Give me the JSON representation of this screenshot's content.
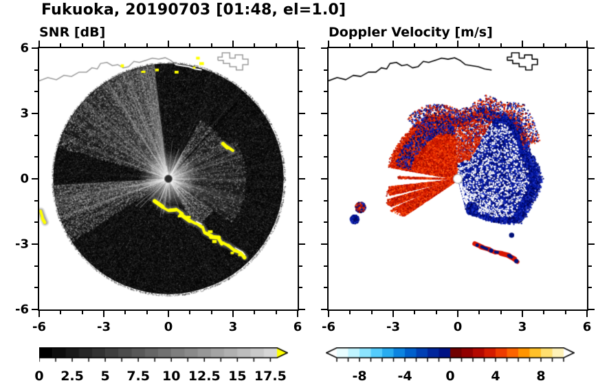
{
  "figure": {
    "title": "Fukuoka, 20190703 [01:48, el=1.0]"
  },
  "coastline": {
    "main": [
      [
        -6,
        4.55
      ],
      [
        -5.6,
        4.7
      ],
      [
        -5.2,
        4.6
      ],
      [
        -4.85,
        4.8
      ],
      [
        -4.5,
        4.75
      ],
      [
        -4.15,
        4.95
      ],
      [
        -3.8,
        4.95
      ],
      [
        -3.55,
        5.15
      ],
      [
        -3.3,
        5.1
      ],
      [
        -3.15,
        5.35
      ],
      [
        -2.85,
        5.4
      ],
      [
        -2.6,
        5.25
      ],
      [
        -2.35,
        5.3
      ],
      [
        -2.1,
        5.15
      ],
      [
        -1.85,
        5.2
      ],
      [
        -1.6,
        5.45
      ],
      [
        -1.35,
        5.4
      ],
      [
        -1.05,
        5.5
      ],
      [
        -0.75,
        5.6
      ],
      [
        -0.45,
        5.55
      ],
      [
        -0.15,
        5.62
      ],
      [
        0.1,
        5.5
      ],
      [
        0.35,
        5.3
      ],
      [
        0.65,
        5.25
      ],
      [
        0.95,
        5.2
      ],
      [
        1.25,
        5.1
      ],
      [
        1.55,
        5.05
      ]
    ],
    "port": [
      [
        2.3,
        5.5
      ],
      [
        2.55,
        5.5
      ],
      [
        2.55,
        5.35
      ],
      [
        2.85,
        5.35
      ],
      [
        2.85,
        5.2
      ],
      [
        3.15,
        5.2
      ],
      [
        3.15,
        5.05
      ],
      [
        3.45,
        5.05
      ],
      [
        3.45,
        5.3
      ],
      [
        3.7,
        5.3
      ],
      [
        3.7,
        5.55
      ],
      [
        3.45,
        5.55
      ],
      [
        3.45,
        5.75
      ],
      [
        3.1,
        5.75
      ],
      [
        3.1,
        5.6
      ],
      [
        2.85,
        5.6
      ],
      [
        2.85,
        5.85
      ],
      [
        2.5,
        5.85
      ],
      [
        2.5,
        5.65
      ],
      [
        2.3,
        5.65
      ],
      [
        2.3,
        5.5
      ]
    ]
  },
  "chart_data": [
    {
      "type": "heatmap",
      "subtype": "radar-ppi-scan",
      "title": "SNR [dB]",
      "xlim": [
        -6,
        6
      ],
      "ylim": [
        -6,
        6
      ],
      "xticks": [
        -6,
        -3,
        0,
        3,
        6
      ],
      "yticks": [
        -6,
        -3,
        0,
        3,
        6
      ],
      "grid": false,
      "colorbar": {
        "range": [
          0,
          18
        ],
        "label_values": [
          0,
          2.5,
          5,
          7.5,
          10,
          12.5,
          15,
          17.5
        ],
        "colormap": "grayscale black to light gray",
        "over_color": "#ffff00"
      },
      "scan_radius": 5.35,
      "description": "PPI radar scan: dark low-SNR speckled disk, brighter haze fans to the NW and W, radial spokes and bright glow at the radar origin, yellow high-SNR ground clutter arcs along the southern coast and western edge, white coastline overlay across the top",
      "haze_sectors": [
        {
          "a0": 97,
          "a1": 125,
          "alpha": 0.26
        },
        {
          "a0": 125,
          "a1": 151,
          "alpha": 0.14
        },
        {
          "a0": 151,
          "a1": 164,
          "alpha": 0.06
        },
        {
          "a0": 183,
          "a1": 201,
          "alpha": 0.16
        },
        {
          "a0": 201,
          "a1": 213,
          "alpha": 0.07
        },
        {
          "a0": -35,
          "a1": 30,
          "alpha": 0.07,
          "rmax": 3.6
        },
        {
          "a0": 30,
          "a1": 62,
          "alpha": 0.05,
          "rmax": 3.1
        },
        {
          "a0": -62,
          "a1": -35,
          "alpha": 0.05,
          "rmax": 2.5
        }
      ],
      "dark_rays": [
        48,
        97
      ],
      "clutter_arcs": [
        [
          [
            -0.62,
            -1.02
          ],
          [
            -0.3,
            -1.28
          ],
          [
            0.02,
            -1.46
          ],
          [
            0.32,
            -1.42
          ],
          [
            0.62,
            -1.62
          ],
          [
            0.95,
            -1.95
          ],
          [
            1.3,
            -2.08
          ],
          [
            1.55,
            -2.2
          ],
          [
            1.72,
            -2.5
          ],
          [
            2.0,
            -2.65
          ],
          [
            2.3,
            -2.75
          ],
          [
            2.5,
            -3.0
          ],
          [
            2.8,
            -3.1
          ],
          [
            3.1,
            -3.3
          ],
          [
            3.42,
            -3.48
          ],
          [
            3.55,
            -3.62
          ]
        ],
        [
          [
            2.55,
            1.6
          ],
          [
            2.75,
            1.45
          ],
          [
            2.95,
            1.28
          ]
        ],
        [
          [
            -5.92,
            -1.5
          ],
          [
            -5.82,
            -1.78
          ],
          [
            -5.72,
            -2.02
          ]
        ]
      ],
      "clutter_specks": [
        [
          1.35,
          5.6
        ],
        [
          1.5,
          5.35
        ],
        [
          1.2,
          5.15
        ],
        [
          -0.55,
          5.05
        ],
        [
          -1.2,
          4.95
        ],
        [
          -2.15,
          5.25
        ],
        [
          0.35,
          4.95
        ],
        [
          0.9,
          -1.78
        ],
        [
          1.9,
          -2.45
        ],
        [
          2.95,
          -3.45
        ],
        [
          3.3,
          -3.55
        ],
        [
          2.1,
          -2.9
        ],
        [
          0.5,
          -1.75
        ]
      ]
    },
    {
      "type": "heatmap",
      "subtype": "radar-ppi-scan",
      "title": "Doppler Velocity [m/s]",
      "xlim": [
        -6,
        6
      ],
      "ylim": [
        -6,
        6
      ],
      "xticks": [
        -6,
        -3,
        0,
        3,
        6
      ],
      "yticks": [
        -6,
        -3,
        0,
        3,
        6
      ],
      "grid": false,
      "colorbar": {
        "range": [
          -10,
          10
        ],
        "label_values": [
          -8,
          -4,
          0,
          4,
          8
        ],
        "colors": [
          "#e8fdff",
          "#c0f4ff",
          "#8ce4ff",
          "#54ccfc",
          "#28acf0",
          "#0c84e0",
          "#0060cc",
          "#0040b4",
          "#00269c",
          "#001284",
          "#700000",
          "#920000",
          "#b40800",
          "#d41c00",
          "#ee3c00",
          "#fc6400",
          "#ff9400",
          "#ffc028",
          "#ffdf70",
          "#fff2b8"
        ],
        "under_color": "#ffffff",
        "over_color": "#ffffff"
      },
      "description": "Doppler velocity field: negative velocities (dark blue, toward radar) fill the eastern lobe out to r≈3.5; positive velocities (red-orange, away) form fans to the NW and SW with white no-echo gaps; speckled red/blue fringe on lobe edges; isolated echo patches to the far west and a red/navy arc to the south; white elsewhere",
      "edge_points": [
        [
          -75,
          1.5
        ],
        [
          -62,
          1.8
        ],
        [
          -48,
          2.5
        ],
        [
          -34,
          3.3
        ],
        [
          -20,
          3.3
        ],
        [
          -8,
          3.5
        ],
        [
          0,
          3.6
        ],
        [
          10,
          3.5
        ],
        [
          22,
          3.3
        ],
        [
          35,
          3.5
        ],
        [
          49,
          3.7
        ],
        [
          60,
          3.3
        ],
        [
          72,
          3.3
        ],
        [
          82,
          2.7
        ],
        [
          90,
          2.6
        ],
        [
          100,
          2.8
        ],
        [
          112,
          3.0
        ],
        [
          126,
          3.0
        ],
        [
          140,
          2.95
        ],
        [
          152,
          3.0
        ],
        [
          165,
          3.05
        ],
        [
          170,
          3.0
        ],
        [
          186,
          3.0
        ],
        [
          196,
          3.2
        ],
        [
          205,
          3.15
        ],
        [
          214,
          2.8
        ]
      ],
      "spans": {
        "full": [
          -75,
          214
        ],
        "blue": [
          -75,
          93
        ],
        "red_nw": [
          93,
          170
        ],
        "red_sw": [
          186,
          214
        ]
      },
      "gaps": [
        [
          170,
          186
        ],
        [
          193,
          196
        ],
        [
          202,
          204
        ]
      ],
      "red_spoke": [
        177,
        179.5
      ],
      "fringe": [
        25,
        130
      ],
      "palette": {
        "blue": [
          "#000a6e",
          "#001088",
          "#0016a0",
          "#1226b8",
          "#2238cc",
          "#000550"
        ],
        "red": [
          "#c01000",
          "#d82000",
          "#ee3300",
          "#a00a00",
          "#ff5510"
        ]
      },
      "patches": [
        {
          "x": -4.55,
          "y": -1.3,
          "r": 0.24,
          "mix": "both",
          "n": 340
        },
        {
          "x": -4.82,
          "y": -1.85,
          "r": 0.2,
          "mix": "blue",
          "n": 230
        },
        {
          "x": 0.62,
          "y": -1.35,
          "r": 0.3,
          "mix": "blue",
          "n": 260
        }
      ],
      "south_arc": [
        [
          0.75,
          -3.0
        ],
        [
          1.1,
          -3.15
        ],
        [
          1.45,
          -3.3
        ],
        [
          1.75,
          -3.4
        ],
        [
          2.05,
          -3.45
        ],
        [
          2.35,
          -3.55
        ],
        [
          2.6,
          -3.7
        ],
        [
          2.78,
          -3.85
        ]
      ],
      "navy_blobs": [
        [
          2.5,
          -2.62,
          0.12
        ],
        [
          1.55,
          -3.33,
          0.1
        ],
        [
          2.42,
          -3.58,
          0.09
        ],
        [
          2.72,
          -3.82,
          0.1
        ],
        [
          0.9,
          -3.08,
          0.08
        ]
      ]
    }
  ]
}
